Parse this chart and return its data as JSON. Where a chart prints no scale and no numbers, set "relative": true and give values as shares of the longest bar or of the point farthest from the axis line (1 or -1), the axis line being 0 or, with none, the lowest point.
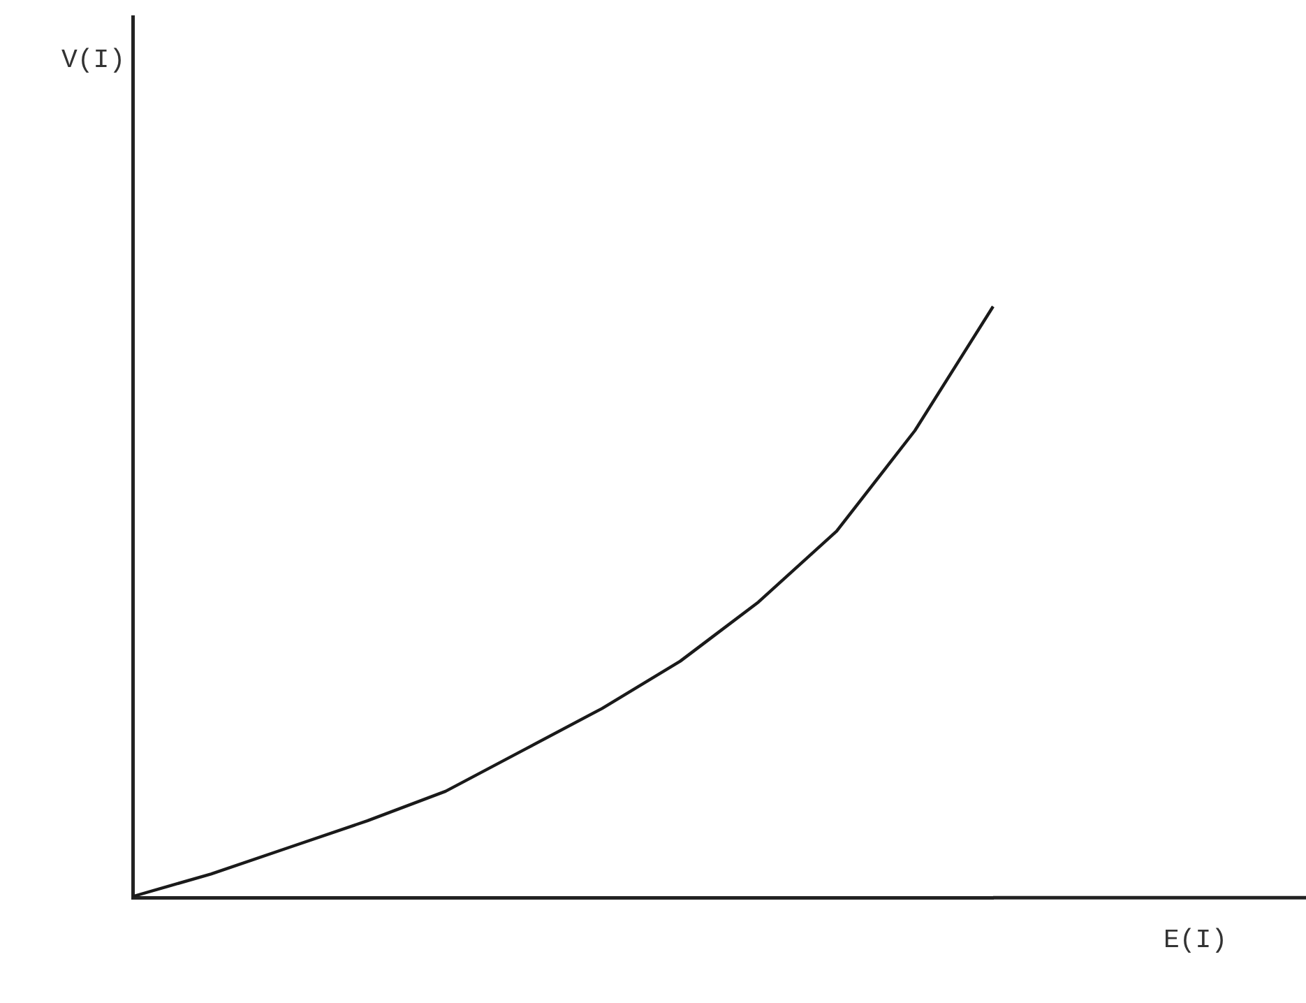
{
  "chart_data": {
    "type": "line",
    "annotations": [
      "V(I)",
      "E(I)"
    ],
    "relative": true,
    "categories": [
      null,
      null,
      null,
      null,
      null,
      null,
      null,
      null,
      null,
      null,
      null,
      null
    ],
    "series": [
      {
        "color": "#1a1a1a",
        "values": [
          0.002,
          0.04,
          0.085,
          0.13,
          0.18,
          0.25,
          0.32,
          0.4,
          0.5,
          0.62,
          0.79,
          1
        ]
      }
    ],
    "grid": false,
    "legend": false,
    "marker": "none",
    "line_style": "solid"
  }
}
